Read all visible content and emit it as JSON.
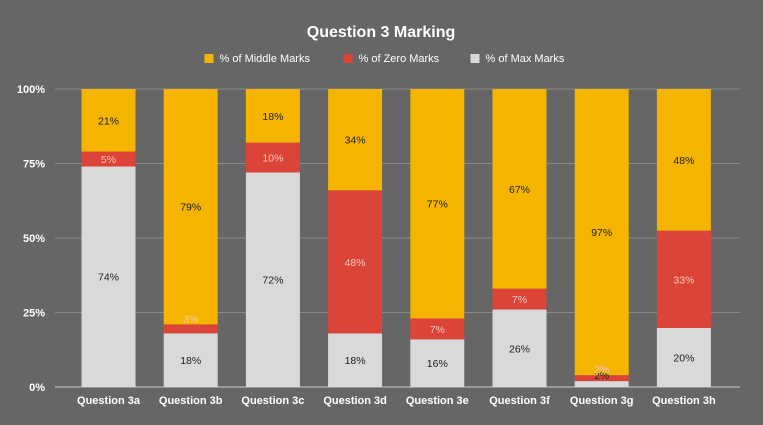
{
  "chart_data": {
    "type": "bar",
    "stacked": "percent",
    "title": "Question 3 Marking",
    "legend_position": "top",
    "categories": [
      "Question 3a",
      "Question 3b",
      "Question 3c",
      "Question 3d",
      "Question 3e",
      "Question 3f",
      "Question 3g",
      "Question 3h"
    ],
    "series": [
      {
        "name": "% of Max Marks",
        "color": "#d9d9d9",
        "label_color": "#222222",
        "values": [
          74,
          18,
          72,
          18,
          16,
          26,
          2,
          20
        ]
      },
      {
        "name": "% of Zero Marks",
        "color": "#db4437",
        "label_color": "#f6c8c3",
        "values": [
          5,
          3,
          10,
          48,
          7,
          7,
          2,
          33
        ]
      },
      {
        "name": "% of Middle Marks",
        "color": "#f4b400",
        "label_color": "#222222",
        "values": [
          21,
          79,
          18,
          34,
          77,
          67,
          97,
          48
        ]
      }
    ],
    "legend_order": [
      "% of Middle Marks",
      "% of Zero Marks",
      "% of Max Marks"
    ],
    "data_labels": {
      "% of Max Marks": [
        "74%",
        "18%",
        "72%",
        "18%",
        "16%",
        "26%",
        "2%",
        "20%"
      ],
      "% of Zero Marks": [
        "5%",
        "3%",
        "10%",
        "48%",
        "7%",
        "7%",
        "2%",
        "33%"
      ],
      "% of Middle Marks": [
        "21%",
        "79%",
        "18%",
        "34%",
        "77%",
        "67%",
        "97%",
        "48%"
      ]
    },
    "y_ticks": [
      "0%",
      "25%",
      "50%",
      "75%",
      "100%"
    ],
    "y_tick_values": [
      0,
      25,
      50,
      75,
      100
    ],
    "ylim": [
      0,
      100
    ],
    "grid": true,
    "background": "#666666"
  }
}
